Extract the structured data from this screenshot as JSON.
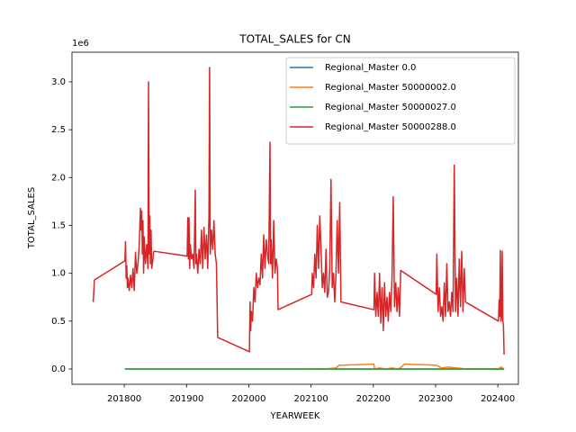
{
  "chart_data": {
    "type": "line",
    "title": "TOTAL_SALES for CN",
    "x_label": "YEARWEEK",
    "y_label": "TOTAL_SALES",
    "y_offset_text": "1e6",
    "xlim": [
      201716,
      202433
    ],
    "ylim": [
      -0.16,
      3.31
    ],
    "xticks": [
      201800,
      201900,
      202000,
      202100,
      202200,
      202300,
      202400
    ],
    "yticks": [
      {
        "value": 0,
        "label": "0.0"
      },
      {
        "value": 0.5,
        "label": "0.5"
      },
      {
        "value": 1,
        "label": "1.0"
      },
      {
        "value": 1.5,
        "label": "1.5"
      },
      {
        "value": 2,
        "label": "2.0"
      },
      {
        "value": 2.5,
        "label": "2.5"
      },
      {
        "value": 3,
        "label": "3.0"
      }
    ],
    "grid": false,
    "legend": "upper right",
    "series": [
      {
        "name": "Regional_Master 0.0",
        "color": "#1f77b4",
        "x": [
          201801,
          202410
        ],
        "values": [
          0,
          0
        ]
      },
      {
        "name": "Regional_Master 50000002.0",
        "color": "#ff7f0e",
        "x": [
          202101,
          202120,
          202140,
          202145,
          202150,
          202201,
          202202,
          202210,
          202220,
          202230,
          202240,
          202245,
          202250,
          202301,
          202310,
          202320,
          202350,
          202401,
          202405,
          202410
        ],
        "values": [
          0,
          0,
          0.01,
          0.04,
          0.04,
          0.05,
          0,
          0.01,
          0,
          0.01,
          0,
          0.02,
          0.05,
          0.04,
          0.01,
          0.02,
          0,
          0,
          0.02,
          0
        ]
      },
      {
        "name": "Regional_Master 50000027.0",
        "color": "#2ca02c",
        "x": [
          201801,
          202410
        ],
        "values": [
          0,
          0
        ]
      },
      {
        "name": "Regional_Master 50000288.0",
        "color": "#d62728",
        "x": [
          201750,
          201751,
          201752,
          201801,
          201802,
          201803,
          201804,
          201805,
          201806,
          201808,
          201810,
          201812,
          201814,
          201816,
          201818,
          201820,
          201822,
          201824,
          201826,
          201827,
          201828,
          201829,
          201830,
          201831,
          201832,
          201834,
          201836,
          201838,
          201839,
          201840,
          201841,
          201842,
          201843,
          201844,
          201846,
          201847,
          201848,
          201901,
          201902,
          201903,
          201904,
          201905,
          201906,
          201908,
          201910,
          201912,
          201914,
          201915,
          201916,
          201918,
          201920,
          201922,
          201924,
          201926,
          201928,
          201930,
          201932,
          201934,
          201936,
          201937,
          201938,
          201940,
          201942,
          201944,
          201946,
          201948,
          201950,
          202001,
          202002,
          202003,
          202004,
          202006,
          202008,
          202010,
          202012,
          202014,
          202016,
          202018,
          202020,
          202022,
          202024,
          202026,
          202028,
          202030,
          202032,
          202034,
          202035,
          202036,
          202038,
          202040,
          202042,
          202044,
          202046,
          202047,
          202101,
          202102,
          202104,
          202106,
          202108,
          202110,
          202112,
          202114,
          202116,
          202118,
          202120,
          202122,
          202124,
          202126,
          202128,
          202130,
          202132,
          202134,
          202136,
          202138,
          202140,
          202142,
          202144,
          202146,
          202148,
          202201,
          202202,
          202204,
          202206,
          202208,
          202210,
          202212,
          202214,
          202216,
          202218,
          202220,
          202222,
          202224,
          202226,
          202228,
          202230,
          202232,
          202234,
          202236,
          202238,
          202240,
          202242,
          202244,
          202301,
          202302,
          202304,
          202306,
          202308,
          202310,
          202312,
          202314,
          202316,
          202318,
          202320,
          202322,
          202324,
          202326,
          202328,
          202330,
          202332,
          202334,
          202336,
          202338,
          202340,
          202342,
          202344,
          202346,
          202348,
          202401,
          202402,
          202403,
          202404,
          202405,
          202406,
          202407,
          202408,
          202409,
          202410
        ],
        "values": [
          0.7,
          0.8,
          0.93,
          1.13,
          1.33,
          0.95,
          1.08,
          0.85,
          0.95,
          0.82,
          0.98,
          0.85,
          1.05,
          0.82,
          1.22,
          1.0,
          1.1,
          1.3,
          1.68,
          1.45,
          1.65,
          1.2,
          1.55,
          1.0,
          1.38,
          1.1,
          1.3,
          1.05,
          3.0,
          1.2,
          1.6,
          1.1,
          1.45,
          1.05,
          1.15,
          1.22,
          1.23,
          1.18,
          1.58,
          1.15,
          1.58,
          1.05,
          1.3,
          1.15,
          1.2,
          1.05,
          1.87,
          1.1,
          1.2,
          1.0,
          1.25,
          1.1,
          1.45,
          1.05,
          1.48,
          1.15,
          1.4,
          1.05,
          1.6,
          3.15,
          1.2,
          1.45,
          1.25,
          1.55,
          1.2,
          1.1,
          0.33,
          0.18,
          0.7,
          0.4,
          0.6,
          0.5,
          0.85,
          0.7,
          1.0,
          0.85,
          0.95,
          0.88,
          1.2,
          0.95,
          1.4,
          1.05,
          1.35,
          1.2,
          1.1,
          2.37,
          1.1,
          1.35,
          0.95,
          1.55,
          1.0,
          1.15,
          1.05,
          0.62,
          0.78,
          1.0,
          0.85,
          1.2,
          0.95,
          1.5,
          1.05,
          1.6,
          1.25,
          0.85,
          1.0,
          0.8,
          1.25,
          0.75,
          0.8,
          1.05,
          1.98,
          0.85,
          1.0,
          0.7,
          1.0,
          1.55,
          1.0,
          1.74,
          0.7,
          0.62,
          1.0,
          0.55,
          0.8,
          0.55,
          1.0,
          0.48,
          0.85,
          0.4,
          0.9,
          0.55,
          0.75,
          0.5,
          0.8,
          0.6,
          0.95,
          1.8,
          0.65,
          0.9,
          0.6,
          0.85,
          0.55,
          1.03,
          0.78,
          1.2,
          0.6,
          0.85,
          0.55,
          0.65,
          0.5,
          0.9,
          0.55,
          1.1,
          0.6,
          0.7,
          0.55,
          0.8,
          0.6,
          2.13,
          0.6,
          0.95,
          0.55,
          1.15,
          0.65,
          1.23,
          0.6,
          1.05,
          0.7,
          0.5,
          0.72,
          0.55,
          1.24,
          0.5,
          0.55,
          1.23,
          0.5,
          0.45,
          0.15
        ]
      }
    ]
  }
}
